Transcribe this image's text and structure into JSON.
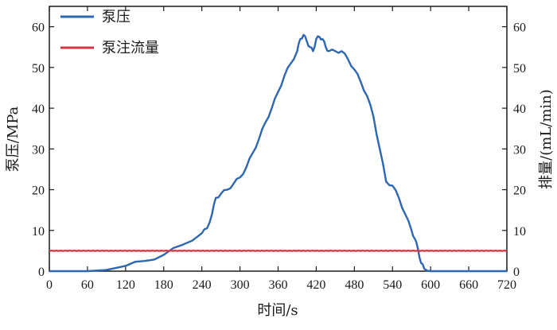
{
  "chart_data": {
    "type": "line",
    "xlabel": "时间/s",
    "ylabel_left": "泵压/MPa",
    "ylabel_right": "排量/(mL/min)",
    "xlim": [
      0,
      720
    ],
    "ylim_left": [
      0,
      65
    ],
    "ylim_right": [
      0,
      65
    ],
    "x_ticks": [
      0,
      60,
      120,
      180,
      240,
      300,
      360,
      420,
      480,
      540,
      600,
      660,
      720
    ],
    "y_ticks_left": [
      0,
      10,
      20,
      30,
      40,
      50,
      60
    ],
    "y_ticks_right": [
      0,
      10,
      20,
      30,
      40,
      50,
      60
    ],
    "grid": false,
    "legend_position": "top-left",
    "series": [
      {
        "name": "泵压",
        "color": "#2e67b1",
        "axis": "left",
        "x": [
          0,
          60,
          90,
          120,
          150,
          180,
          210,
          240,
          248,
          256,
          262,
          270,
          280,
          290,
          300,
          310,
          320,
          330,
          340,
          350,
          360,
          370,
          380,
          390,
          395,
          400,
          405,
          410,
          415,
          420,
          425,
          430,
          435,
          440,
          450,
          460,
          470,
          480,
          490,
          500,
          510,
          520,
          530,
          540,
          550,
          560,
          570,
          575,
          580,
          585,
          590,
          595,
          600,
          610,
          640,
          680,
          720
        ],
        "y": [
          0,
          0,
          0.3,
          1.3,
          2.5,
          4.0,
          6.5,
          9.3,
          10.5,
          14.0,
          18.0,
          19.0,
          20.0,
          21.5,
          23.0,
          25.5,
          29.0,
          32.5,
          36.5,
          40.0,
          44.0,
          48.0,
          51.0,
          54.0,
          57.0,
          58.0,
          56.5,
          55.0,
          54.0,
          57.0,
          57.5,
          57.0,
          55.0,
          54.0,
          54.0,
          54.0,
          52.0,
          49.5,
          46.5,
          43.0,
          38.0,
          30.0,
          22.0,
          21.0,
          18.0,
          14.0,
          10.0,
          8.0,
          5.5,
          2.0,
          0.6,
          0.1,
          0,
          0,
          0,
          0,
          0
        ]
      },
      {
        "name": "泵注流量",
        "color": "#d8343f",
        "axis": "right",
        "x": [
          0,
          720
        ],
        "y": [
          5.0,
          5.0
        ]
      }
    ]
  }
}
